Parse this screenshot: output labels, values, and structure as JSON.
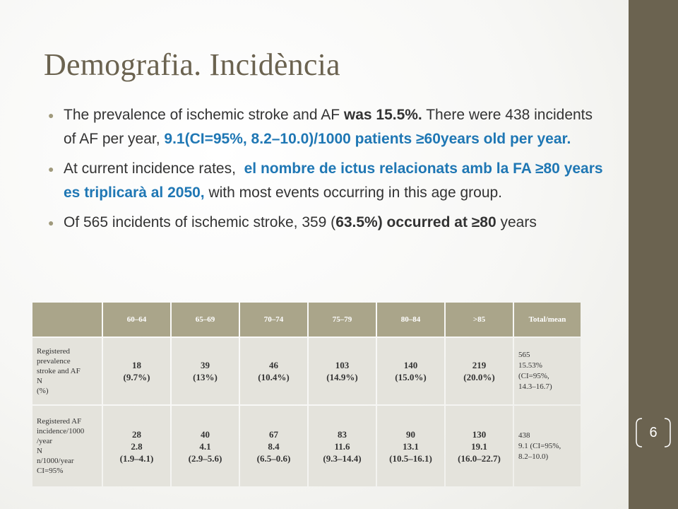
{
  "slide": {
    "title": "Demografia. Incidència",
    "page_number": "6"
  },
  "bullets": [
    {
      "parts": [
        {
          "text": "The prevalence of ischemic stroke and AF ",
          "style": "normal"
        },
        {
          "text": "was 15.5%.",
          "style": "bold"
        },
        {
          "text": " There were 438 incidents of AF per year, ",
          "style": "normal"
        },
        {
          "text": "9.1(CI=95%, 8.2–10.0)/1000 patients ≥60years old per year.",
          "style": "blue"
        }
      ]
    },
    {
      "parts": [
        {
          "text": "At current incidence rates,  ",
          "style": "normal"
        },
        {
          "text": "el nombre de ictus relacionats amb la FA ≥80 years es triplicarà al 2050,",
          "style": "blue"
        },
        {
          "text": " with most events occurring in this age group.",
          "style": "normal"
        }
      ]
    },
    {
      "parts": [
        {
          "text": "Of 565 incidents of ischemic stroke, 359 (",
          "style": "normal"
        },
        {
          "text": "63.5%) occurred at ≥80",
          "style": "bold"
        },
        {
          "text": " years",
          "style": "normal"
        }
      ]
    }
  ],
  "table": {
    "corner": "",
    "headers": [
      "60–64",
      "65–69",
      "70–74",
      "75–79",
      "80–84",
      ">85",
      "Total/mean"
    ],
    "rows": [
      {
        "label": "Registered\nprevalence\nstroke and AF\nN\n(%)",
        "values": [
          "18\n(9.7%)",
          "39\n(13%)",
          "46\n(10.4%)",
          "103\n(14.9%)",
          "140\n(15.0%)",
          "219\n(20.0%)"
        ],
        "total": "565\n15.53%\n(CI=95%,\n14.3–16.7)"
      },
      {
        "label": "Registered AF\nincidence/1000\n/year\nN\nn/1000/year\nCI=95%",
        "values": [
          "28\n2.8\n(1.9–4.1)",
          "40\n4.1\n(2.9–5.6)",
          "67\n8.4\n(6.5–0.6)",
          "83\n11.6\n(9.3–14.4)",
          "90\n13.1\n(10.5–16.1)",
          "130\n19.1\n(16.0–22.7)"
        ],
        "total": "438\n9.1 (CI=95%,\n8.2–10.0)"
      }
    ]
  },
  "colors": {
    "accent": "#6b6350",
    "highlight_blue": "#1f77b4",
    "table_header": "#aaa58a",
    "table_cell": "#e4e3dc"
  }
}
